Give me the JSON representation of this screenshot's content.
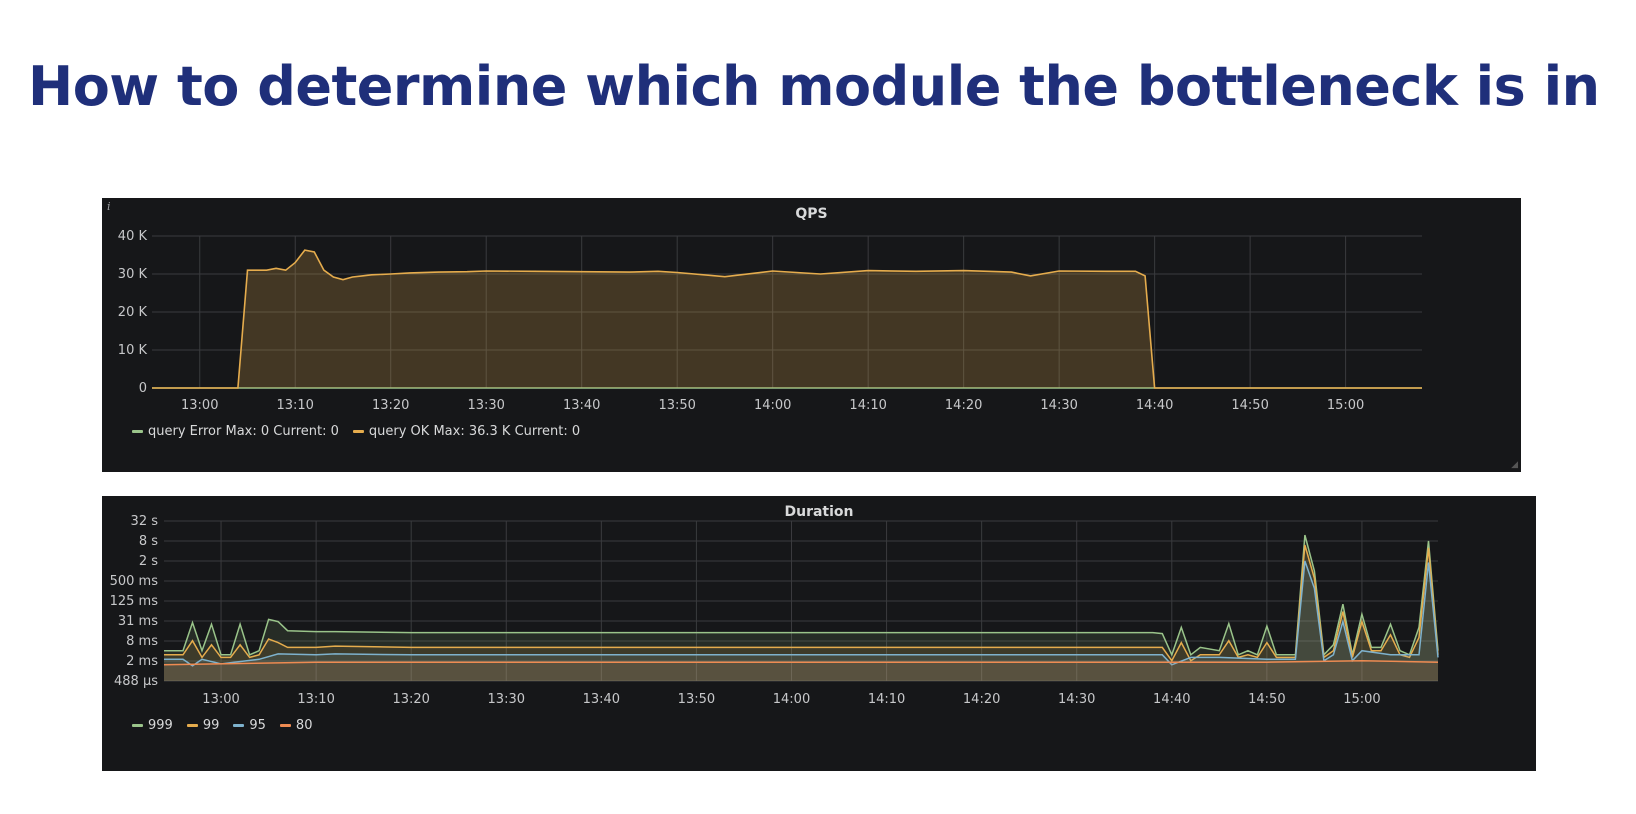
{
  "slide": {
    "title": "How to determine which module the bottleneck is in",
    "title_color": "#1f2f7a"
  },
  "chart_data": [
    {
      "type": "area",
      "title": "QPS",
      "xlabel": "",
      "ylabel": "",
      "background": "#161719",
      "grid": true,
      "legend_position": "bottom-left",
      "xlim": [
        "12:55",
        "15:08"
      ],
      "ylim": [
        0,
        40000
      ],
      "y_ticks": [
        "0",
        "10 K",
        "20 K",
        "30 K",
        "40 K"
      ],
      "x_ticks": [
        "13:00",
        "13:10",
        "13:20",
        "13:30",
        "13:40",
        "13:50",
        "14:00",
        "14:10",
        "14:20",
        "14:30",
        "14:40",
        "14:50",
        "15:00"
      ],
      "series": [
        {
          "name": "query Error",
          "color": "#9ac48a",
          "legend_text": "query Error  Max: 0  Current: 0",
          "x": [
            "12:55",
            "15:08"
          ],
          "values": [
            0,
            0
          ]
        },
        {
          "name": "query OK",
          "color": "#e5ac4d",
          "legend_text": "query OK  Max: 36.3 K  Current: 0",
          "x": [
            "12:55",
            "13:04",
            "13:05",
            "13:06",
            "13:07",
            "13:08",
            "13:09",
            "13:10",
            "13:11",
            "13:12",
            "13:13",
            "13:14",
            "13:15",
            "13:16",
            "13:17",
            "13:18",
            "13:20",
            "13:22",
            "13:25",
            "13:28",
            "13:30",
            "13:35",
            "13:40",
            "13:45",
            "13:48",
            "13:50",
            "13:55",
            "14:00",
            "14:05",
            "14:10",
            "14:15",
            "14:20",
            "14:25",
            "14:27",
            "14:30",
            "14:35",
            "14:38",
            "14:39",
            "14:40",
            "14:45",
            "15:08"
          ],
          "values": [
            0,
            0,
            31000,
            31000,
            31000,
            31500,
            31000,
            33000,
            36300,
            35800,
            31000,
            29200,
            28500,
            29200,
            29500,
            29800,
            30000,
            30300,
            30500,
            30600,
            30800,
            30700,
            30600,
            30500,
            30700,
            30400,
            29300,
            30800,
            30000,
            30900,
            30700,
            30900,
            30500,
            29500,
            30800,
            30700,
            30700,
            29500,
            0,
            0,
            0
          ]
        }
      ]
    },
    {
      "type": "line",
      "title": "Duration",
      "xlabel": "",
      "ylabel": "",
      "background": "#161719",
      "grid": true,
      "log_scale_y": true,
      "legend_position": "bottom-left",
      "xlim": [
        "12:54",
        "15:08"
      ],
      "ylim_ms": [
        0.488,
        32000
      ],
      "y_ticks": [
        "488 µs",
        "2 ms",
        "8 ms",
        "31 ms",
        "125 ms",
        "500 ms",
        "2 s",
        "8 s",
        "32 s"
      ],
      "x_ticks": [
        "13:00",
        "13:10",
        "13:20",
        "13:30",
        "13:40",
        "13:50",
        "14:00",
        "14:10",
        "14:20",
        "14:30",
        "14:40",
        "14:50",
        "15:00"
      ],
      "series": [
        {
          "name": "999",
          "color": "#9ac48a",
          "x": [
            "12:54",
            "12:56",
            "12:57",
            "12:58",
            "12:59",
            "13:00",
            "13:01",
            "13:02",
            "13:03",
            "13:04",
            "13:05",
            "13:06",
            "13:07",
            "13:10",
            "13:12",
            "13:20",
            "13:30",
            "13:40",
            "13:50",
            "14:00",
            "14:10",
            "14:20",
            "14:30",
            "14:38",
            "14:39",
            "14:40",
            "14:41",
            "14:42",
            "14:43",
            "14:45",
            "14:46",
            "14:47",
            "14:48",
            "14:49",
            "14:50",
            "14:51",
            "14:52",
            "14:53",
            "14:54",
            "14:55",
            "14:56",
            "14:57",
            "14:58",
            "14:59",
            "15:00",
            "15:01",
            "15:02",
            "15:03",
            "15:04",
            "15:05",
            "15:06",
            "15:07",
            "15:08"
          ],
          "values_ms": [
            4,
            4,
            28,
            4,
            25,
            3,
            3,
            25,
            3,
            4,
            35,
            30,
            16,
            15,
            15,
            14,
            14,
            14,
            14,
            14,
            14,
            14,
            14,
            14,
            13,
            3,
            20,
            3,
            5,
            4,
            26,
            3,
            4,
            3,
            22,
            3,
            3,
            3,
            12000,
            1000,
            3,
            6,
            100,
            3,
            50,
            5,
            5,
            25,
            4,
            3,
            20,
            8000,
            4
          ]
        },
        {
          "name": "99",
          "color": "#e5ac4d",
          "x": [
            "12:54",
            "12:56",
            "12:57",
            "12:58",
            "12:59",
            "13:00",
            "13:01",
            "13:02",
            "13:03",
            "13:04",
            "13:05",
            "13:06",
            "13:07",
            "13:10",
            "13:12",
            "13:20",
            "13:30",
            "13:40",
            "13:50",
            "14:00",
            "14:10",
            "14:20",
            "14:30",
            "14:38",
            "14:39",
            "14:40",
            "14:41",
            "14:42",
            "14:43",
            "14:45",
            "14:46",
            "14:47",
            "14:48",
            "14:49",
            "14:50",
            "14:51",
            "14:52",
            "14:53",
            "14:54",
            "14:55",
            "14:56",
            "14:57",
            "14:58",
            "14:59",
            "15:00",
            "15:01",
            "15:02",
            "15:03",
            "15:04",
            "15:05",
            "15:06",
            "15:07",
            "15:08"
          ],
          "values_ms": [
            3,
            3,
            8,
            2.5,
            6,
            2.5,
            2.5,
            6,
            2.5,
            3,
            9,
            7,
            5,
            5,
            5.5,
            5,
            5,
            5,
            5,
            5,
            5,
            5,
            5,
            5,
            5,
            2,
            7,
            2,
            3,
            3,
            8,
            2.5,
            3,
            2.5,
            7,
            2.5,
            2.5,
            2.5,
            6000,
            600,
            2.5,
            4,
            60,
            2.5,
            30,
            4,
            4,
            12,
            3,
            2.5,
            10,
            5000,
            3
          ]
        },
        {
          "name": "95",
          "color": "#7eb2cd",
          "x": [
            "12:54",
            "12:56",
            "12:57",
            "12:58",
            "13:00",
            "13:04",
            "13:06",
            "13:10",
            "13:12",
            "13:20",
            "13:30",
            "13:40",
            "13:50",
            "14:00",
            "14:10",
            "14:20",
            "14:30",
            "14:39",
            "14:40",
            "14:42",
            "14:45",
            "14:50",
            "14:53",
            "14:54",
            "14:55",
            "14:56",
            "14:57",
            "14:58",
            "14:59",
            "15:00",
            "15:03",
            "15:06",
            "15:07",
            "15:08"
          ],
          "values_ms": [
            2.2,
            2.2,
            1.4,
            2.2,
            1.6,
            2.2,
            3.2,
            3,
            3.2,
            3,
            3,
            3,
            3,
            3,
            3,
            3,
            3,
            3,
            1.5,
            2.5,
            2.5,
            2.2,
            2.2,
            2000,
            300,
            2,
            3,
            30,
            2,
            4,
            3,
            3,
            1800,
            2.5
          ]
        },
        {
          "name": "80",
          "color": "#ee8b52",
          "x": [
            "12:54",
            "13:10",
            "13:20",
            "13:30",
            "13:40",
            "13:50",
            "14:00",
            "14:10",
            "14:20",
            "14:30",
            "14:40",
            "14:50",
            "15:00",
            "15:08"
          ],
          "values_ms": [
            1.5,
            1.8,
            1.8,
            1.8,
            1.8,
            1.8,
            1.8,
            1.8,
            1.8,
            1.8,
            1.8,
            1.8,
            2,
            1.8
          ]
        }
      ]
    }
  ]
}
